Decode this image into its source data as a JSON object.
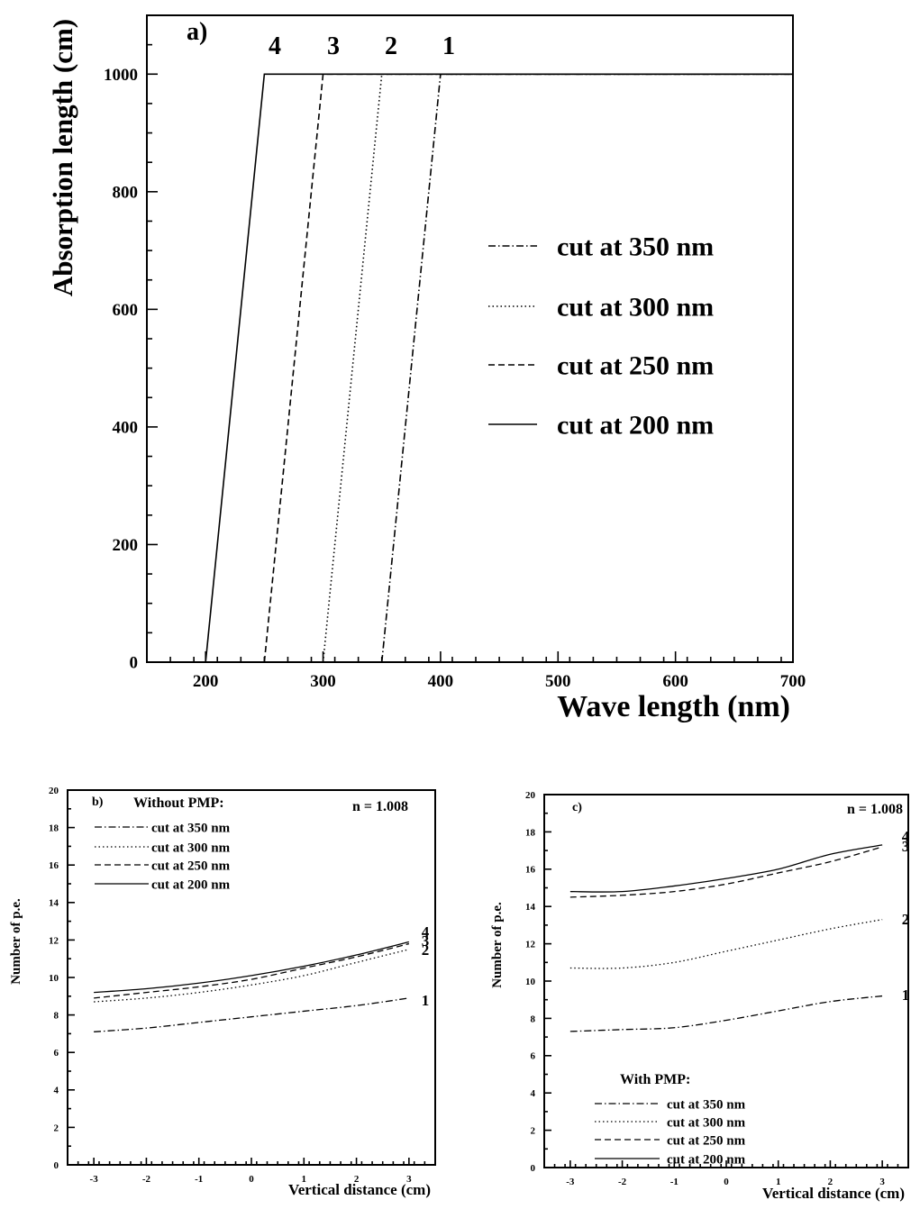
{
  "chart_data": [
    {
      "type": "line",
      "panel_label": "a)",
      "xlabel": "Wave length (nm)",
      "ylabel": "Absorption length (cm)",
      "xlim": [
        150,
        700
      ],
      "ylim": [
        0,
        1100
      ],
      "xticks": [
        200,
        300,
        400,
        500,
        600,
        700
      ],
      "yticks": [
        0,
        200,
        400,
        600,
        800,
        1000
      ],
      "legend_position": "right",
      "series": [
        {
          "name": "cut at 350 nm",
          "style": "dashdot",
          "curve_label": "1",
          "x": [
            350,
            400,
            700
          ],
          "y": [
            0,
            1000,
            1000
          ]
        },
        {
          "name": "cut at 300 nm",
          "style": "dotted",
          "curve_label": "2",
          "x": [
            300,
            350,
            700
          ],
          "y": [
            0,
            1000,
            1000
          ]
        },
        {
          "name": "cut at 250 nm",
          "style": "dashed",
          "curve_label": "3",
          "x": [
            250,
            300,
            700
          ],
          "y": [
            0,
            1000,
            1000
          ]
        },
        {
          "name": "cut at 200 nm",
          "style": "solid",
          "curve_label": "4",
          "x": [
            200,
            250,
            700
          ],
          "y": [
            0,
            1000,
            1000
          ]
        }
      ]
    },
    {
      "type": "line",
      "panel_label": "b)",
      "legend_title": "Without PMP:",
      "annotation": "n = 1.008",
      "xlabel": "Vertical distance (cm)",
      "ylabel": "Number of p.e.",
      "xlim": [
        -3.5,
        3.5
      ],
      "ylim": [
        0,
        20
      ],
      "xticks": [
        -3,
        -2,
        -1,
        0,
        1,
        2,
        3
      ],
      "yticks": [
        0,
        2,
        4,
        6,
        8,
        10,
        12,
        14,
        16,
        18,
        20
      ],
      "legend_position": "top-left",
      "series": [
        {
          "name": "cut at 350 nm",
          "style": "dashdot",
          "curve_label": "1",
          "x": [
            -3,
            -2,
            -1,
            0,
            1,
            2,
            3
          ],
          "y": [
            7.1,
            7.3,
            7.6,
            7.9,
            8.2,
            8.5,
            8.9
          ]
        },
        {
          "name": "cut at 300 nm",
          "style": "dotted",
          "curve_label": "2",
          "x": [
            -3,
            -2,
            -1,
            0,
            1,
            2,
            3
          ],
          "y": [
            8.7,
            8.9,
            9.2,
            9.6,
            10.1,
            10.8,
            11.5
          ]
        },
        {
          "name": "cut at 250 nm",
          "style": "dashed",
          "curve_label": "3",
          "x": [
            -3,
            -2,
            -1,
            0,
            1,
            2,
            3
          ],
          "y": [
            8.9,
            9.2,
            9.5,
            9.9,
            10.5,
            11.1,
            11.8
          ]
        },
        {
          "name": "cut at 200 nm",
          "style": "solid",
          "curve_label": "4",
          "x": [
            -3,
            -2,
            -1,
            0,
            1,
            2,
            3
          ],
          "y": [
            9.2,
            9.4,
            9.7,
            10.1,
            10.6,
            11.2,
            11.9
          ]
        }
      ]
    },
    {
      "type": "line",
      "panel_label": "c)",
      "legend_title": "With PMP:",
      "annotation": "n = 1.008",
      "xlabel": "Vertical distance (cm)",
      "ylabel": "Number of p.e.",
      "xlim": [
        -3.5,
        3.5
      ],
      "ylim": [
        0,
        20
      ],
      "xticks": [
        -3,
        -2,
        -1,
        0,
        1,
        2,
        3
      ],
      "yticks": [
        0,
        2,
        4,
        6,
        8,
        10,
        12,
        14,
        16,
        18,
        20
      ],
      "legend_position": "bottom-left",
      "series": [
        {
          "name": "cut at 350 nm",
          "style": "dashdot",
          "curve_label": "1",
          "x": [
            -3,
            -2,
            -1,
            0,
            1,
            2,
            3
          ],
          "y": [
            7.3,
            7.4,
            7.5,
            7.9,
            8.4,
            8.9,
            9.2
          ]
        },
        {
          "name": "cut at 300 nm",
          "style": "dotted",
          "curve_label": "2",
          "x": [
            -3,
            -2,
            -1,
            0,
            1,
            2,
            3
          ],
          "y": [
            10.7,
            10.7,
            11.0,
            11.6,
            12.2,
            12.8,
            13.3
          ]
        },
        {
          "name": "cut at 250 nm",
          "style": "dashed",
          "curve_label": "3",
          "x": [
            -3,
            -2,
            -1,
            0,
            1,
            2,
            3
          ],
          "y": [
            14.5,
            14.6,
            14.8,
            15.2,
            15.8,
            16.4,
            17.2
          ]
        },
        {
          "name": "cut at 200 nm",
          "style": "solid",
          "curve_label": "4",
          "x": [
            -3,
            -2,
            -1,
            0,
            1,
            2,
            3
          ],
          "y": [
            14.8,
            14.8,
            15.1,
            15.5,
            16.0,
            16.8,
            17.3
          ]
        }
      ]
    }
  ]
}
